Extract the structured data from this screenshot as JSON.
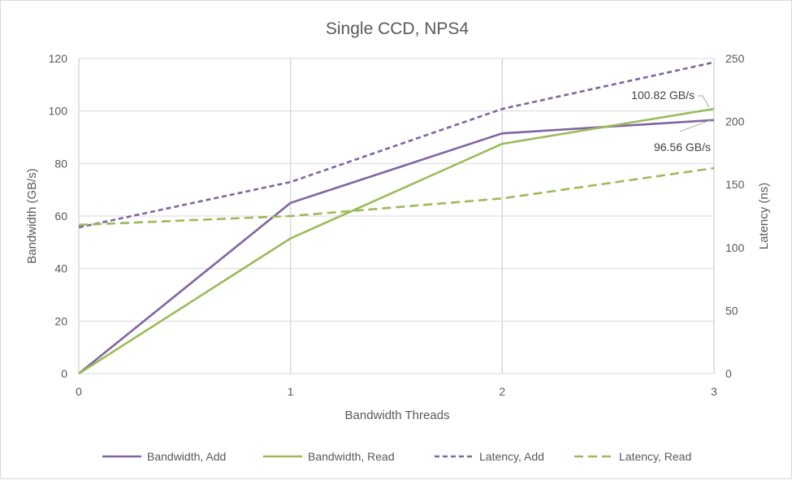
{
  "chart_data": {
    "type": "line",
    "title": "Single CCD, NPS4",
    "xlabel": "Bandwidth Threads",
    "ylabel": "Bandwidth (GB/s)",
    "y2label": "Latency (ns)",
    "x": [
      0,
      1,
      2,
      3
    ],
    "xticks": [
      "0",
      "1",
      "2",
      "3"
    ],
    "ylim": [
      0,
      120
    ],
    "yticks": [
      "0",
      "20",
      "40",
      "60",
      "80",
      "100",
      "120"
    ],
    "y2lim": [
      0,
      250
    ],
    "y2ticks": [
      "0",
      "50",
      "100",
      "150",
      "200",
      "250"
    ],
    "grid": true,
    "legend_position": "bottom",
    "series": [
      {
        "name": "Bandwidth, Add",
        "axis": "left",
        "values": [
          0,
          65,
          91.5,
          96.56
        ],
        "color": "#8064a2",
        "dash": "solid"
      },
      {
        "name": "Bandwidth, Read",
        "axis": "left",
        "values": [
          0,
          51.5,
          87.5,
          100.82
        ],
        "color": "#9bbb59",
        "dash": "solid"
      },
      {
        "name": "Latency, Add",
        "axis": "right",
        "values": [
          116,
          152,
          210,
          247
        ],
        "color": "#8064a2",
        "dash": "short"
      },
      {
        "name": "Latency, Read",
        "axis": "right",
        "values": [
          118,
          125,
          139,
          163
        ],
        "color": "#9bbb59",
        "dash": "long"
      }
    ],
    "annotations": [
      {
        "text": "100.82 GB/s",
        "series": "Bandwidth, Read",
        "x": 3,
        "y": 100.82
      },
      {
        "text": "96.56 GB/s",
        "series": "Bandwidth, Add",
        "x": 3,
        "y": 96.56
      }
    ]
  }
}
